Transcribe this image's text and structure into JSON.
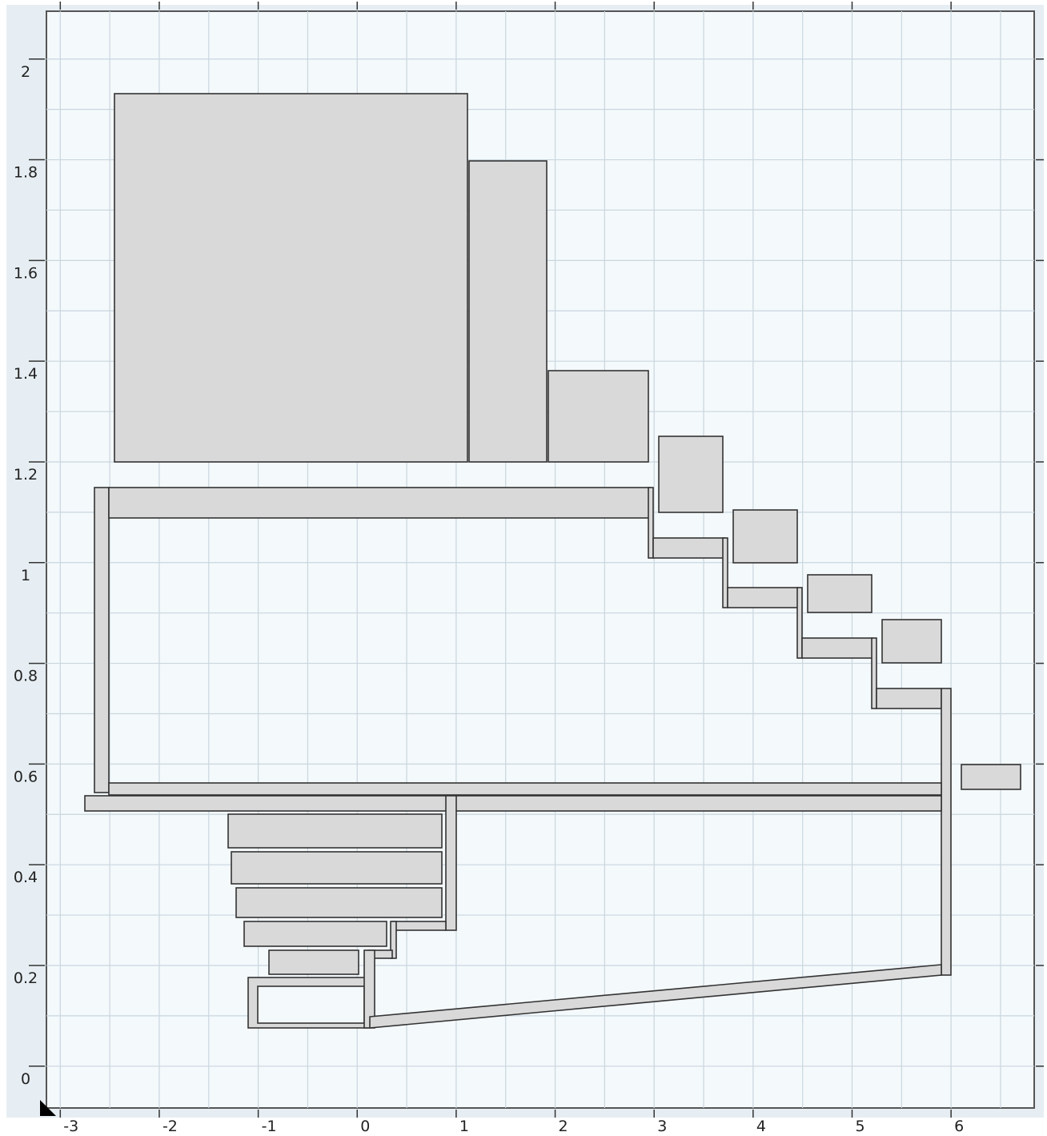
{
  "axes": {
    "xlim": [
      -3.14,
      6.84
    ],
    "ylim": [
      -0.083,
      2.095
    ],
    "xticks": [
      -3,
      -2,
      -1,
      0,
      1,
      2,
      3,
      4,
      5,
      6
    ],
    "yticks": [
      0,
      0.2,
      0.4,
      0.6,
      0.8,
      1,
      1.2,
      1.4,
      1.6,
      1.8,
      2
    ]
  }
}
